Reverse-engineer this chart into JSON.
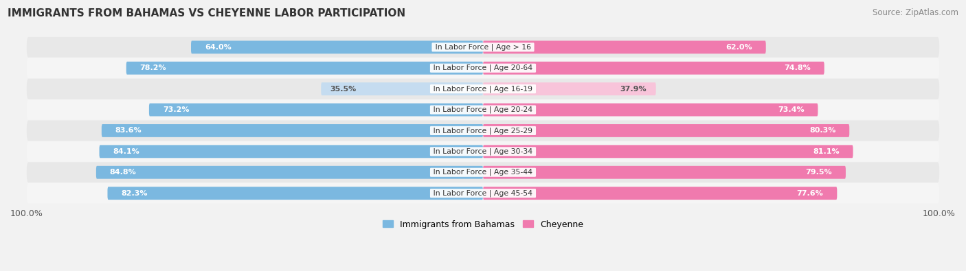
{
  "title": "IMMIGRANTS FROM BAHAMAS VS CHEYENNE LABOR PARTICIPATION",
  "source": "Source: ZipAtlas.com",
  "categories": [
    "In Labor Force | Age > 16",
    "In Labor Force | Age 20-64",
    "In Labor Force | Age 16-19",
    "In Labor Force | Age 20-24",
    "In Labor Force | Age 25-29",
    "In Labor Force | Age 30-34",
    "In Labor Force | Age 35-44",
    "In Labor Force | Age 45-54"
  ],
  "bahamas_values": [
    64.0,
    78.2,
    35.5,
    73.2,
    83.6,
    84.1,
    84.8,
    82.3
  ],
  "cheyenne_values": [
    62.0,
    74.8,
    37.9,
    73.4,
    80.3,
    81.1,
    79.5,
    77.6
  ],
  "bahamas_color": "#7BB8E0",
  "bahamas_color_light": "#C5DCF0",
  "cheyenne_color": "#F07AAE",
  "cheyenne_color_light": "#F8C4DA",
  "bar_height": 0.62,
  "bg_color": "#f2f2f2",
  "row_bg_even": "#e8e8e8",
  "row_bg_odd": "#f5f5f5",
  "legend_labels": [
    "Immigrants from Bahamas",
    "Cheyenne"
  ],
  "title_fontsize": 11,
  "source_fontsize": 8.5,
  "label_fontsize": 7.8,
  "value_fontsize": 8.0
}
